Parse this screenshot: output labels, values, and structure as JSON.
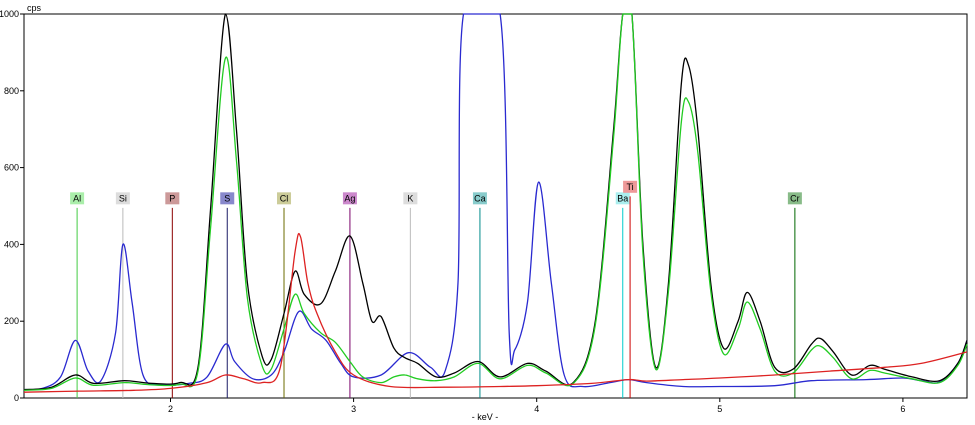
{
  "chart_data": {
    "type": "line",
    "title": "",
    "ylabel": "cps",
    "xlabel": "- keV -",
    "xlim": [
      1.2,
      6.35
    ],
    "ylim": [
      0,
      1000
    ],
    "x_ticks": [
      2,
      3,
      4,
      5,
      6
    ],
    "y_ticks": [
      0,
      200,
      400,
      600,
      800,
      1000
    ],
    "grid": false,
    "series": [
      {
        "color": "#2a2ad0",
        "points": [
          [
            1.2,
            22
          ],
          [
            1.3,
            25
          ],
          [
            1.4,
            55
          ],
          [
            1.48,
            150
          ],
          [
            1.55,
            70
          ],
          [
            1.62,
            45
          ],
          [
            1.7,
            170
          ],
          [
            1.74,
            400
          ],
          [
            1.79,
            250
          ],
          [
            1.85,
            60
          ],
          [
            1.95,
            35
          ],
          [
            2.1,
            38
          ],
          [
            2.2,
            55
          ],
          [
            2.3,
            140
          ],
          [
            2.35,
            95
          ],
          [
            2.45,
            50
          ],
          [
            2.55,
            60
          ],
          [
            2.62,
            120
          ],
          [
            2.7,
            225
          ],
          [
            2.77,
            180
          ],
          [
            2.85,
            150
          ],
          [
            2.93,
            90
          ],
          [
            3.0,
            55
          ],
          [
            3.15,
            60
          ],
          [
            3.3,
            118
          ],
          [
            3.42,
            80
          ],
          [
            3.5,
            70
          ],
          [
            3.57,
            300
          ],
          [
            3.6,
            1000
          ],
          [
            3.8,
            1000
          ],
          [
            3.85,
            170
          ],
          [
            3.88,
            125
          ],
          [
            3.95,
            250
          ],
          [
            4.01,
            562
          ],
          [
            4.08,
            300
          ],
          [
            4.15,
            60
          ],
          [
            4.25,
            30
          ],
          [
            4.4,
            40
          ],
          [
            4.5,
            48
          ],
          [
            4.6,
            40
          ],
          [
            4.8,
            30
          ],
          [
            5.0,
            30
          ],
          [
            5.3,
            32
          ],
          [
            5.5,
            45
          ],
          [
            5.8,
            48
          ],
          [
            6.0,
            52
          ],
          [
            6.1,
            45
          ],
          [
            6.2,
            42
          ],
          [
            6.3,
            90
          ],
          [
            6.35,
            150
          ]
        ]
      },
      {
        "color": "#000000",
        "points": [
          [
            1.2,
            22
          ],
          [
            1.35,
            28
          ],
          [
            1.48,
            60
          ],
          [
            1.58,
            38
          ],
          [
            1.75,
            45
          ],
          [
            1.9,
            38
          ],
          [
            2.05,
            40
          ],
          [
            2.15,
            80
          ],
          [
            2.22,
            500
          ],
          [
            2.3,
            1000
          ],
          [
            2.36,
            700
          ],
          [
            2.42,
            300
          ],
          [
            2.5,
            110
          ],
          [
            2.55,
            100
          ],
          [
            2.62,
            220
          ],
          [
            2.68,
            330
          ],
          [
            2.73,
            270
          ],
          [
            2.82,
            245
          ],
          [
            2.9,
            330
          ],
          [
            2.98,
            422
          ],
          [
            3.05,
            300
          ],
          [
            3.1,
            200
          ],
          [
            3.15,
            212
          ],
          [
            3.22,
            130
          ],
          [
            3.28,
            105
          ],
          [
            3.35,
            90
          ],
          [
            3.45,
            55
          ],
          [
            3.55,
            65
          ],
          [
            3.68,
            95
          ],
          [
            3.8,
            55
          ],
          [
            3.95,
            90
          ],
          [
            4.05,
            70
          ],
          [
            4.2,
            40
          ],
          [
            4.32,
            200
          ],
          [
            4.42,
            700
          ],
          [
            4.47,
            1000
          ],
          [
            4.52,
            1000
          ],
          [
            4.58,
            400
          ],
          [
            4.65,
            80
          ],
          [
            4.72,
            300
          ],
          [
            4.79,
            820
          ],
          [
            4.83,
            865
          ],
          [
            4.88,
            700
          ],
          [
            4.95,
            300
          ],
          [
            5.02,
            130
          ],
          [
            5.1,
            200
          ],
          [
            5.15,
            275
          ],
          [
            5.22,
            200
          ],
          [
            5.3,
            80
          ],
          [
            5.4,
            75
          ],
          [
            5.5,
            140
          ],
          [
            5.55,
            155
          ],
          [
            5.62,
            120
          ],
          [
            5.72,
            60
          ],
          [
            5.82,
            85
          ],
          [
            5.9,
            75
          ],
          [
            6.05,
            55
          ],
          [
            6.2,
            45
          ],
          [
            6.3,
            90
          ],
          [
            6.35,
            150
          ]
        ]
      },
      {
        "color": "#22cc22",
        "points": [
          [
            1.2,
            20
          ],
          [
            1.35,
            25
          ],
          [
            1.48,
            52
          ],
          [
            1.58,
            33
          ],
          [
            1.75,
            40
          ],
          [
            1.9,
            34
          ],
          [
            2.05,
            36
          ],
          [
            2.15,
            70
          ],
          [
            2.22,
            450
          ],
          [
            2.3,
            885
          ],
          [
            2.36,
            620
          ],
          [
            2.42,
            260
          ],
          [
            2.5,
            85
          ],
          [
            2.55,
            75
          ],
          [
            2.62,
            180
          ],
          [
            2.68,
            270
          ],
          [
            2.73,
            220
          ],
          [
            2.82,
            170
          ],
          [
            2.9,
            145
          ],
          [
            2.98,
            95
          ],
          [
            3.05,
            55
          ],
          [
            3.15,
            40
          ],
          [
            3.22,
            55
          ],
          [
            3.28,
            60
          ],
          [
            3.35,
            50
          ],
          [
            3.45,
            45
          ],
          [
            3.55,
            55
          ],
          [
            3.68,
            90
          ],
          [
            3.8,
            50
          ],
          [
            3.95,
            85
          ],
          [
            4.05,
            65
          ],
          [
            4.2,
            38
          ],
          [
            4.32,
            190
          ],
          [
            4.42,
            680
          ],
          [
            4.47,
            1000
          ],
          [
            4.52,
            1000
          ],
          [
            4.58,
            380
          ],
          [
            4.65,
            75
          ],
          [
            4.72,
            280
          ],
          [
            4.79,
            720
          ],
          [
            4.83,
            770
          ],
          [
            4.88,
            640
          ],
          [
            4.95,
            280
          ],
          [
            5.02,
            115
          ],
          [
            5.1,
            180
          ],
          [
            5.15,
            250
          ],
          [
            5.22,
            180
          ],
          [
            5.3,
            70
          ],
          [
            5.4,
            65
          ],
          [
            5.5,
            125
          ],
          [
            5.55,
            135
          ],
          [
            5.62,
            105
          ],
          [
            5.72,
            50
          ],
          [
            5.82,
            72
          ],
          [
            5.9,
            65
          ],
          [
            6.05,
            50
          ],
          [
            6.2,
            40
          ],
          [
            6.3,
            85
          ],
          [
            6.35,
            140
          ]
        ]
      },
      {
        "color": "#dd2222",
        "points": [
          [
            1.2,
            15
          ],
          [
            1.5,
            18
          ],
          [
            1.8,
            20
          ],
          [
            2.0,
            25
          ],
          [
            2.2,
            40
          ],
          [
            2.3,
            60
          ],
          [
            2.4,
            50
          ],
          [
            2.5,
            40
          ],
          [
            2.6,
            80
          ],
          [
            2.68,
            380
          ],
          [
            2.71,
            420
          ],
          [
            2.75,
            300
          ],
          [
            2.8,
            220
          ],
          [
            2.9,
            120
          ],
          [
            3.0,
            60
          ],
          [
            3.2,
            30
          ],
          [
            3.5,
            28
          ],
          [
            3.8,
            30
          ],
          [
            4.0,
            32
          ],
          [
            4.3,
            38
          ],
          [
            4.5,
            48
          ],
          [
            4.6,
            44
          ],
          [
            4.8,
            48
          ],
          [
            5.0,
            52
          ],
          [
            5.3,
            60
          ],
          [
            5.6,
            70
          ],
          [
            5.9,
            80
          ],
          [
            6.1,
            90
          ],
          [
            6.35,
            120
          ]
        ]
      }
    ],
    "markers": [
      {
        "label": "Al",
        "x": 1.49,
        "color": "#44cc44",
        "bg": "#aaeeaa",
        "height": 520
      },
      {
        "label": "Si",
        "x": 1.74,
        "color": "#bbbbbb",
        "bg": "#dddddd",
        "height": 520
      },
      {
        "label": "P",
        "x": 2.01,
        "color": "#8b0000",
        "bg": "#cc9999",
        "height": 520
      },
      {
        "label": "S",
        "x": 2.31,
        "color": "#1a1a66",
        "bg": "#8888cc",
        "height": 520
      },
      {
        "label": "Cl",
        "x": 2.62,
        "color": "#6b6b00",
        "bg": "#cccc99",
        "height": 520
      },
      {
        "label": "Ag",
        "x": 2.98,
        "color": "#7a006b",
        "bg": "#cc88cc",
        "height": 520
      },
      {
        "label": "K",
        "x": 3.31,
        "color": "#bbbbbb",
        "bg": "#dddddd",
        "height": 520
      },
      {
        "label": "Ca",
        "x": 3.69,
        "color": "#008b8b",
        "bg": "#88cccc",
        "height": 520
      },
      {
        "label": "Ba",
        "x": 4.47,
        "color": "#00cccc",
        "bg": "#aaeeee",
        "height": 520
      },
      {
        "label": "Ti",
        "x": 4.51,
        "color": "#cc0000",
        "bg": "#ee9999",
        "height": 550
      },
      {
        "label": "Cr",
        "x": 5.41,
        "color": "#006600",
        "bg": "#88bb88",
        "height": 520
      }
    ]
  }
}
